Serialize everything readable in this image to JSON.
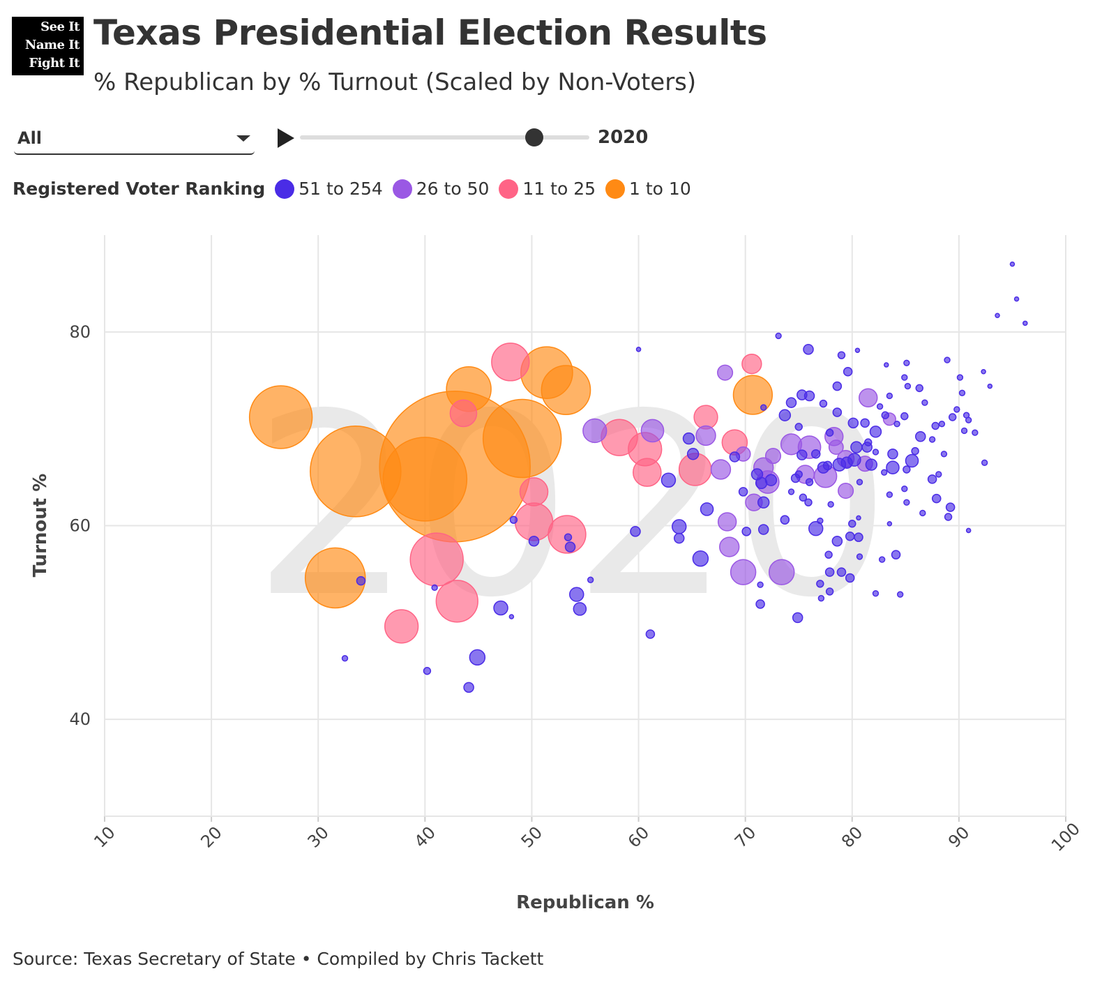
{
  "logo": {
    "lines": [
      "See It",
      "Name It",
      "Fight It"
    ]
  },
  "header": {
    "title": "Texas Presidential Election Results",
    "subtitle": "% Republican by % Turnout (Scaled by Non-Voters)"
  },
  "controls": {
    "filter_value": "All",
    "year_label": "2020",
    "slider_fraction": 0.81
  },
  "legend": {
    "title": "Registered Voter Ranking",
    "items": [
      {
        "label": "51 to 254",
        "color": "#4a2ce6"
      },
      {
        "label": "26 to 50",
        "color": "#9a58e4"
      },
      {
        "label": "11 to 25",
        "color": "#ff6486"
      },
      {
        "label": "1 to 10",
        "color": "#ff8a14"
      }
    ]
  },
  "footer": {
    "source": "Source: Texas Secretary of State • Compiled by Chris Tackett"
  },
  "chart_data": {
    "type": "scatter",
    "title": "Texas Presidential Election Results",
    "xlabel": "Republican %",
    "ylabel": "Turnout %",
    "xlim": [
      10,
      100
    ],
    "ylim": [
      30,
      90
    ],
    "xticks": [
      "10",
      "20",
      "30",
      "40",
      "50",
      "60",
      "70",
      "80",
      "90",
      "100"
    ],
    "yticks": [
      "40",
      "60",
      "80"
    ],
    "grid": true,
    "watermark": "2020",
    "size_field": "non-voters (thousands, approx.)",
    "series": [
      {
        "name": "1 to 10",
        "color": "#ff8a14",
        "points": [
          [
            42.8,
            66.1,
            900
          ],
          [
            33.5,
            65.6,
            326
          ],
          [
            40.0,
            64.8,
            278
          ],
          [
            49.1,
            69.0,
            242
          ],
          [
            26.5,
            71.2,
            156
          ],
          [
            31.6,
            54.6,
            143
          ],
          [
            51.4,
            75.8,
            106
          ],
          [
            53.2,
            74.0,
            95
          ],
          [
            44.1,
            74.1,
            79
          ],
          [
            70.7,
            73.5,
            60
          ]
        ]
      },
      {
        "name": "11 to 25",
        "color": "#ff6486",
        "points": [
          [
            41.1,
            56.5,
            111
          ],
          [
            43.0,
            52.2,
            69
          ],
          [
            48.0,
            76.9,
            56
          ],
          [
            50.2,
            60.4,
            56
          ],
          [
            53.3,
            59.1,
            56
          ],
          [
            58.2,
            69.1,
            52
          ],
          [
            37.8,
            49.6,
            44
          ],
          [
            60.6,
            67.9,
            44
          ],
          [
            65.3,
            65.8,
            41
          ],
          [
            50.2,
            63.5,
            31
          ],
          [
            60.8,
            65.5,
            31
          ],
          [
            43.6,
            71.6,
            28
          ],
          [
            69.0,
            68.6,
            25
          ],
          [
            66.3,
            71.2,
            22
          ],
          [
            70.6,
            76.7,
            15
          ]
        ]
      },
      {
        "name": "26 to 50",
        "color": "#9a58e4",
        "points": [
          [
            69.8,
            55.2,
            25
          ],
          [
            73.4,
            55.2,
            25
          ],
          [
            55.9,
            69.8,
            22
          ],
          [
            61.3,
            69.8,
            20
          ],
          [
            72.1,
            64.5,
            20
          ],
          [
            76.0,
            68.1,
            20
          ],
          [
            77.5,
            65.1,
            20
          ],
          [
            74.3,
            68.4,
            17
          ],
          [
            66.3,
            69.3,
            15
          ],
          [
            67.7,
            65.8,
            15
          ],
          [
            68.5,
            57.8,
            15
          ],
          [
            71.7,
            66.0,
            15
          ],
          [
            68.3,
            60.4,
            13
          ],
          [
            75.6,
            65.3,
            13
          ],
          [
            78.3,
            69.2,
            13
          ],
          [
            81.5,
            73.2,
            13
          ],
          [
            70.8,
            62.4,
            11
          ],
          [
            79.4,
            66.9,
            11
          ],
          [
            68.1,
            75.8,
            9
          ],
          [
            79.4,
            63.6,
            9
          ],
          [
            81.2,
            66.4,
            9
          ],
          [
            72.6,
            67.2,
            9
          ],
          [
            78.5,
            68.1,
            8
          ],
          [
            69.8,
            67.4,
            8
          ],
          [
            83.5,
            71.0,
            6
          ]
        ]
      },
      {
        "name": "51 to 254",
        "color": "#4a2ce6",
        "points": [
          [
            65.8,
            56.6,
            9.3
          ],
          [
            44.9,
            46.4,
            9.3
          ],
          [
            76.6,
            59.7,
            7.7
          ],
          [
            62.8,
            64.7,
            7.7
          ],
          [
            63.8,
            59.9,
            7.7
          ],
          [
            54.2,
            52.9,
            7.7
          ],
          [
            47.1,
            51.5,
            7.7
          ],
          [
            80.2,
            66.8,
            6.3
          ],
          [
            78.8,
            66.3,
            6.3
          ],
          [
            66.4,
            61.7,
            6.3
          ],
          [
            54.5,
            51.4,
            6.3
          ],
          [
            83.8,
            66.0,
            6.3
          ],
          [
            85.6,
            66.7,
            6.3
          ],
          [
            73.7,
            71.4,
            4.9
          ],
          [
            82.2,
            69.7,
            4.9
          ],
          [
            80.4,
            68.1,
            4.9
          ],
          [
            79.5,
            66.5,
            4.9
          ],
          [
            81.8,
            66.3,
            4.9
          ],
          [
            77.3,
            66.0,
            4.9
          ],
          [
            71.1,
            65.3,
            4.9
          ],
          [
            71.5,
            64.4,
            4.9
          ],
          [
            71.7,
            62.4,
            4.9
          ],
          [
            64.7,
            69.0,
            4.9
          ],
          [
            65.1,
            67.4,
            4.9
          ],
          [
            72.4,
            64.7,
            4.9
          ],
          [
            75.9,
            78.2,
            3.8
          ],
          [
            74.3,
            72.7,
            3.8
          ],
          [
            75.3,
            73.5,
            3.8
          ],
          [
            76.0,
            73.4,
            3.8
          ],
          [
            80.1,
            70.6,
            3.8
          ],
          [
            81.4,
            68.1,
            3.8
          ],
          [
            75.3,
            67.3,
            3.8
          ],
          [
            71.7,
            59.6,
            3.8
          ],
          [
            69.0,
            67.1,
            3.8
          ],
          [
            78.6,
            58.4,
            3.8
          ],
          [
            74.9,
            50.5,
            3.8
          ],
          [
            63.8,
            58.7,
            3.8
          ],
          [
            59.7,
            59.4,
            3.8
          ],
          [
            53.6,
            57.8,
            3.8
          ],
          [
            50.2,
            58.4,
            3.8
          ],
          [
            44.1,
            43.3,
            3.8
          ],
          [
            83.8,
            67.4,
            3.8
          ],
          [
            86.4,
            69.2,
            3.8
          ],
          [
            79.6,
            75.9,
            2.8
          ],
          [
            78.6,
            74.4,
            2.8
          ],
          [
            78.6,
            71.7,
            2.8
          ],
          [
            81.2,
            70.6,
            2.8
          ],
          [
            77.7,
            66.2,
            2.8
          ],
          [
            73.7,
            60.6,
            2.8
          ],
          [
            69.8,
            63.5,
            2.8
          ],
          [
            70.1,
            59.4,
            2.8
          ],
          [
            79.8,
            58.9,
            2.8
          ],
          [
            80.6,
            58.8,
            2.8
          ],
          [
            77.9,
            55.2,
            2.8
          ],
          [
            79.0,
            55.2,
            2.8
          ],
          [
            79.8,
            54.6,
            2.8
          ],
          [
            71.4,
            51.9,
            2.8
          ],
          [
            61.1,
            48.8,
            2.8
          ],
          [
            34.0,
            54.3,
            2.8
          ],
          [
            87.5,
            64.8,
            2.8
          ],
          [
            87.9,
            62.8,
            2.8
          ],
          [
            89.2,
            61.9,
            2.8
          ],
          [
            84.1,
            57.0,
            2.8
          ],
          [
            74.7,
            64.9,
            2.8
          ],
          [
            76.6,
            67.4,
            2.8
          ],
          [
            79.0,
            77.6,
            1.9
          ],
          [
            75.0,
            70.2,
            1.9
          ],
          [
            77.3,
            72.6,
            1.9
          ],
          [
            77.9,
            69.6,
            1.9
          ],
          [
            81.5,
            68.6,
            1.9
          ],
          [
            75.0,
            65.3,
            1.9
          ],
          [
            76.0,
            64.5,
            1.9
          ],
          [
            75.4,
            62.9,
            1.9
          ],
          [
            80.0,
            60.2,
            1.9
          ],
          [
            77.8,
            57.0,
            1.9
          ],
          [
            77.0,
            54.0,
            1.9
          ],
          [
            77.9,
            53.2,
            1.9
          ],
          [
            53.4,
            58.8,
            1.9
          ],
          [
            48.3,
            60.6,
            1.9
          ],
          [
            40.2,
            45.0,
            1.9
          ],
          [
            75.9,
            62.4,
            1.9
          ],
          [
            84.9,
            71.3,
            1.9
          ],
          [
            86.3,
            74.2,
            1.9
          ],
          [
            87.8,
            70.3,
            1.9
          ],
          [
            89.4,
            71.2,
            1.9
          ],
          [
            89.0,
            60.9,
            1.9
          ],
          [
            83.1,
            71.4,
            1.9
          ],
          [
            85.1,
            65.8,
            1.9
          ],
          [
            85.9,
            67.7,
            1.9
          ],
          [
            73.1,
            79.6,
            1.2
          ],
          [
            71.7,
            72.2,
            1.2
          ],
          [
            77.1,
            52.5,
            1.2
          ],
          [
            71.4,
            53.9,
            1.2
          ],
          [
            55.5,
            54.4,
            1.2
          ],
          [
            32.5,
            46.3,
            1.2
          ],
          [
            40.9,
            53.6,
            1.2
          ],
          [
            90.3,
            73.7,
            1.2
          ],
          [
            82.2,
            53.0,
            1.2
          ],
          [
            84.5,
            52.9,
            1.2
          ],
          [
            84.9,
            63.8,
            1.2
          ],
          [
            85.1,
            62.4,
            1.2
          ],
          [
            83.5,
            63.2,
            1.2
          ],
          [
            86.6,
            61.3,
            1.2
          ],
          [
            88.1,
            65.3,
            1.2
          ],
          [
            88.6,
            67.4,
            1.2
          ],
          [
            90.5,
            69.8,
            1.2
          ],
          [
            90.9,
            70.9,
            1.2
          ],
          [
            91.5,
            69.6,
            1.2
          ],
          [
            90.7,
            71.4,
            1.2
          ],
          [
            89.8,
            72.0,
            1.2
          ],
          [
            88.9,
            77.1,
            1.2
          ],
          [
            90.1,
            75.3,
            1.2
          ],
          [
            92.4,
            66.5,
            1.2
          ],
          [
            82.6,
            72.3,
            1.2
          ],
          [
            85.1,
            76.8,
            1.2
          ],
          [
            85.2,
            74.4,
            1.2
          ],
          [
            87.5,
            68.9,
            1.2
          ],
          [
            82.2,
            67.6,
            1.2
          ],
          [
            83.0,
            65.5,
            1.2
          ],
          [
            82.8,
            56.5,
            1.2
          ],
          [
            80.7,
            56.8,
            1.2
          ],
          [
            83.5,
            73.4,
            1.2
          ],
          [
            84.9,
            75.3,
            1.2
          ],
          [
            86.8,
            72.7,
            1.2
          ],
          [
            88.4,
            70.5,
            1.2
          ],
          [
            84.2,
            70.5,
            1.2
          ],
          [
            80.7,
            64.5,
            1.2
          ],
          [
            77.0,
            60.5,
            1.2
          ],
          [
            74.3,
            63.5,
            1.2
          ],
          [
            78.0,
            62.2,
            1.2
          ],
          [
            80.5,
            78.1,
            0.7
          ],
          [
            48.1,
            50.6,
            0.7
          ],
          [
            60.0,
            78.2,
            0.7
          ],
          [
            92.3,
            75.9,
            0.7
          ],
          [
            92.9,
            74.4,
            0.7
          ],
          [
            95.0,
            87.0,
            0.7
          ],
          [
            95.4,
            83.4,
            0.7
          ],
          [
            93.6,
            81.7,
            0.7
          ],
          [
            96.2,
            80.9,
            0.7
          ],
          [
            90.9,
            59.5,
            0.7
          ],
          [
            83.2,
            76.6,
            0.7
          ],
          [
            80.6,
            60.8,
            0.7
          ],
          [
            83.5,
            60.2,
            0.7
          ]
        ]
      }
    ]
  }
}
